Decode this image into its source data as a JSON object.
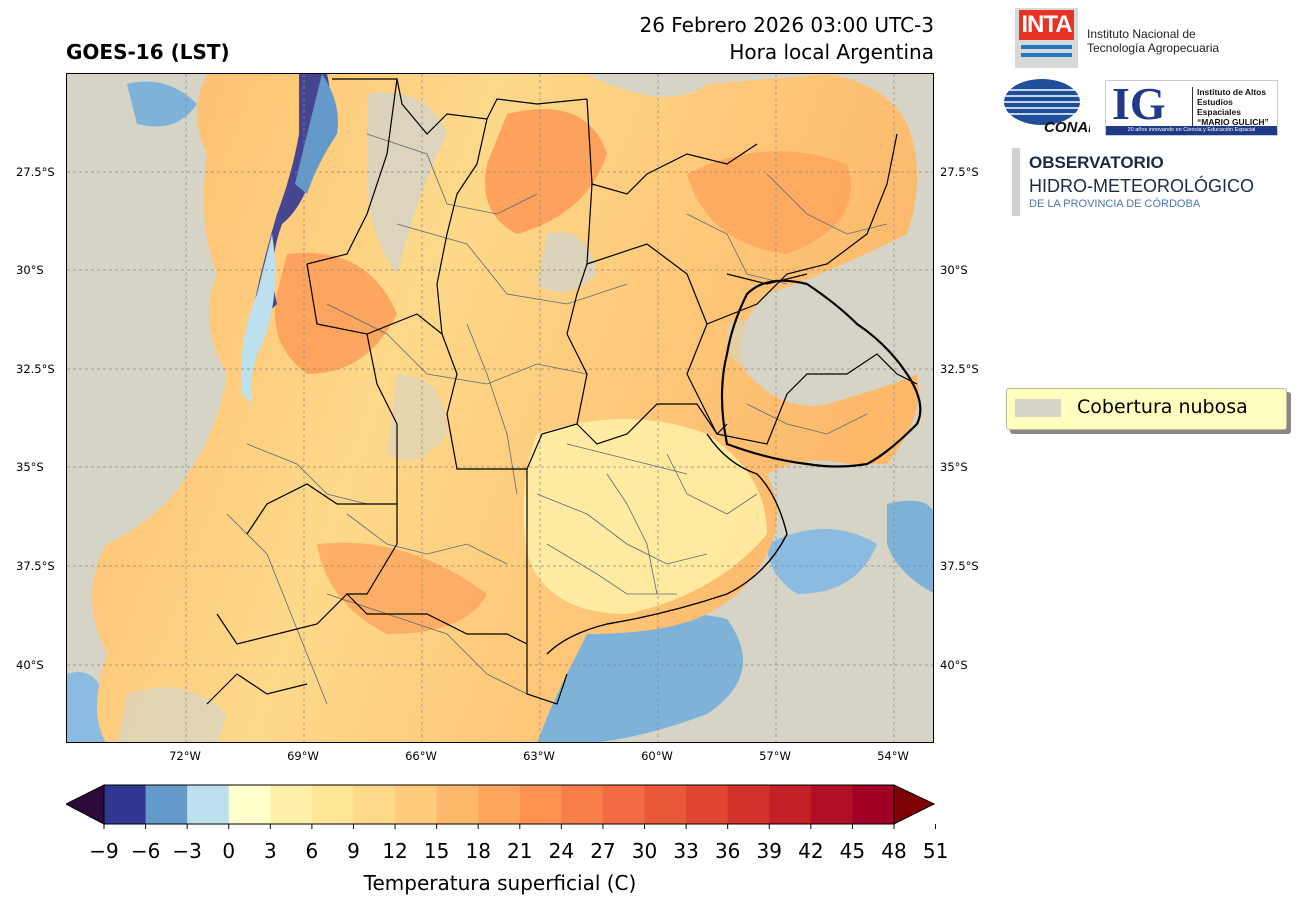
{
  "header": {
    "product_title": "GOES-16 (LST)",
    "datetime": "26 Febrero 2026 03:00 UTC-3",
    "local_time_note": "Hora local Argentina"
  },
  "logos": {
    "inta": {
      "mark": "INTA",
      "line1": "Instituto Nacional de",
      "line2": "Tecnología Agropecuaria"
    },
    "conae": {
      "mark": "CONAE"
    },
    "ig": {
      "letters": "IG",
      "line1": "Instituto de Altos",
      "line2": "Estudios Espaciales",
      "line3": "“MARIO GULICH”",
      "strip": "20 años innovando en Ciencia y Educación Espacial"
    },
    "observatorio": {
      "line1": "OBSERVATORIO",
      "line2": "HIDRO-METEOROLÓGICO",
      "line3": "DE LA PROVINCIA DE CÓRDOBA"
    }
  },
  "map": {
    "lat_labels": [
      "27.5°S",
      "30°S",
      "32.5°S",
      "35°S",
      "37.5°S",
      "40°S"
    ],
    "lon_labels": [
      "72°W",
      "69°W",
      "66°W",
      "63°W",
      "60°W",
      "57°W",
      "54°W"
    ],
    "cloud_color": "#d6d4c6",
    "ocean_color": "#7fb2d8",
    "boundary_color_province": "#000000",
    "boundary_color_department": "#5a6a7a"
  },
  "legend": {
    "label": "Cobertura nubosa",
    "swatch_color": "#d6d4c6"
  },
  "colorbar": {
    "title": "Temperatura superficial (C)",
    "ticks": [
      "−9",
      "−6",
      "−3",
      "0",
      "3",
      "6",
      "9",
      "12",
      "15",
      "18",
      "21",
      "24",
      "27",
      "30",
      "33",
      "36",
      "39",
      "42",
      "45",
      "48",
      "51"
    ],
    "under_color": "#2d0a3a",
    "over_color": "#7f0000",
    "colors": [
      "#313695",
      "#649ac9",
      "#bce0ee",
      "#ffffcc",
      "#fff1a8",
      "#fee596",
      "#fed98a",
      "#fecb7a",
      "#fdb86a",
      "#fda55c",
      "#fc9150",
      "#f87d49",
      "#f36b42",
      "#ea583a",
      "#e04632",
      "#d3322a",
      "#c32027",
      "#b00f26",
      "#a00026"
    ]
  }
}
